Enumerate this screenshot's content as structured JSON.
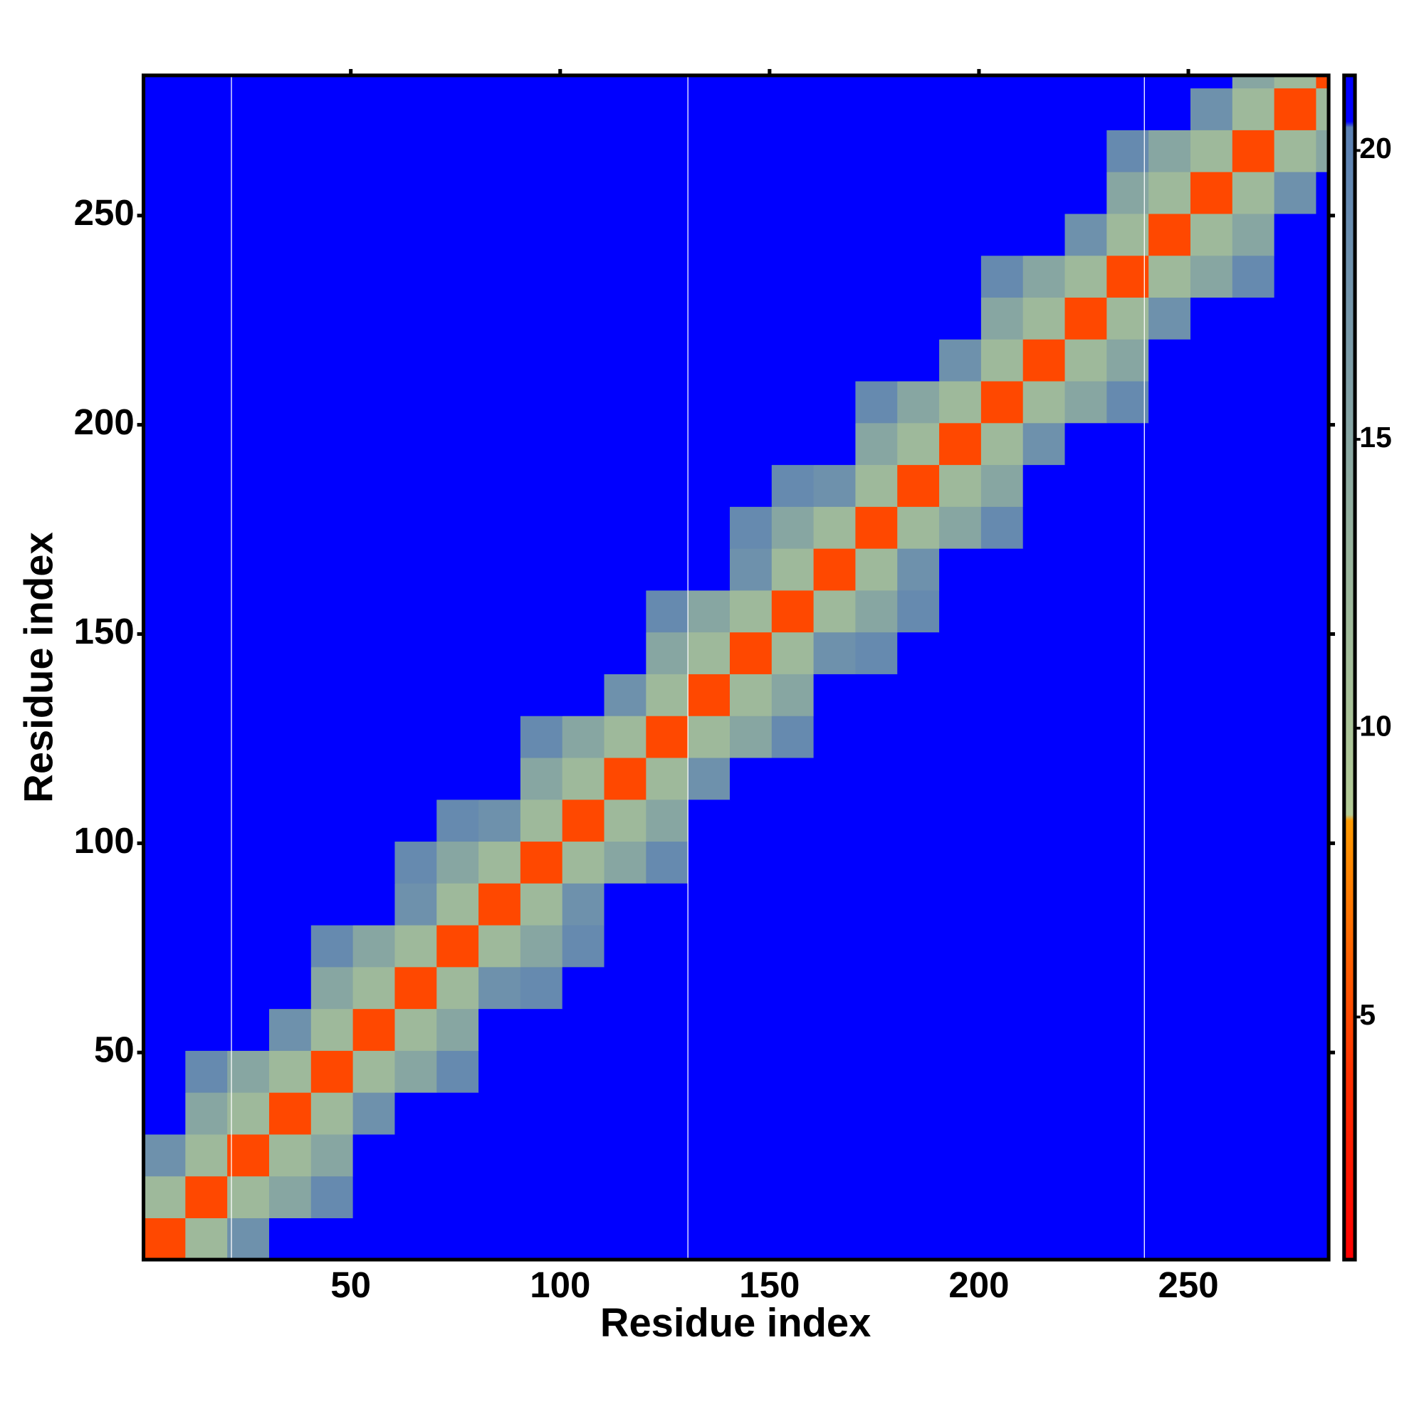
{
  "chart_data": {
    "type": "heatmap",
    "xlabel": "Residue index",
    "ylabel": "Residue index",
    "bins": [
      0.5,
      10.5,
      20.5,
      30.5,
      40.5,
      50.5,
      60.5,
      70.5,
      80.5,
      90.5,
      100.5,
      110.5,
      120.5,
      130.5,
      140.5,
      150.5,
      160.5,
      170.5,
      180.5,
      190.5,
      200.5,
      210.5,
      220.5,
      230.5,
      240.5,
      250.5,
      260.5,
      270.5,
      280.5,
      283.5
    ],
    "z": [
      [
        5,
        12,
        18,
        21,
        21,
        21,
        21,
        21,
        21,
        21,
        21,
        21,
        21,
        21,
        21,
        21,
        21,
        21,
        21,
        21,
        21,
        21,
        21,
        21,
        21,
        21,
        21,
        21,
        21
      ],
      [
        12,
        5,
        12,
        15,
        19,
        21,
        21,
        21,
        21,
        21,
        21,
        21,
        21,
        21,
        21,
        21,
        21,
        21,
        21,
        21,
        21,
        21,
        21,
        21,
        21,
        21,
        21,
        21,
        21
      ],
      [
        18,
        12,
        5,
        12,
        15,
        21,
        21,
        21,
        21,
        21,
        21,
        21,
        21,
        21,
        21,
        21,
        21,
        21,
        21,
        21,
        21,
        21,
        21,
        21,
        21,
        21,
        21,
        21,
        21
      ],
      [
        21,
        15,
        12,
        5,
        12,
        18,
        21,
        21,
        21,
        21,
        21,
        21,
        21,
        21,
        21,
        21,
        21,
        21,
        21,
        21,
        21,
        21,
        21,
        21,
        21,
        21,
        21,
        21,
        21
      ],
      [
        21,
        19,
        15,
        12,
        5,
        12,
        15,
        19,
        21,
        21,
        21,
        21,
        21,
        21,
        21,
        21,
        21,
        21,
        21,
        21,
        21,
        21,
        21,
        21,
        21,
        21,
        21,
        21,
        21
      ],
      [
        21,
        21,
        21,
        18,
        12,
        5,
        12,
        15,
        21,
        21,
        21,
        21,
        21,
        21,
        21,
        21,
        21,
        21,
        21,
        21,
        21,
        21,
        21,
        21,
        21,
        21,
        21,
        21,
        21
      ],
      [
        21,
        21,
        21,
        21,
        15,
        12,
        5,
        12,
        18,
        19,
        21,
        21,
        21,
        21,
        21,
        21,
        21,
        21,
        21,
        21,
        21,
        21,
        21,
        21,
        21,
        21,
        21,
        21,
        21
      ],
      [
        21,
        21,
        21,
        21,
        19,
        15,
        12,
        5,
        12,
        15,
        19,
        21,
        21,
        21,
        21,
        21,
        21,
        21,
        21,
        21,
        21,
        21,
        21,
        21,
        21,
        21,
        21,
        21,
        21
      ],
      [
        21,
        21,
        21,
        21,
        21,
        21,
        18,
        12,
        5,
        12,
        18,
        21,
        21,
        21,
        21,
        21,
        21,
        21,
        21,
        21,
        21,
        21,
        21,
        21,
        21,
        21,
        21,
        21,
        21
      ],
      [
        21,
        21,
        21,
        21,
        21,
        21,
        19,
        15,
        12,
        5,
        12,
        15,
        19,
        21,
        21,
        21,
        21,
        21,
        21,
        21,
        21,
        21,
        21,
        21,
        21,
        21,
        21,
        21,
        21
      ],
      [
        21,
        21,
        21,
        21,
        21,
        21,
        21,
        19,
        18,
        12,
        5,
        12,
        15,
        21,
        21,
        21,
        21,
        21,
        21,
        21,
        21,
        21,
        21,
        21,
        21,
        21,
        21,
        21,
        21
      ],
      [
        21,
        21,
        21,
        21,
        21,
        21,
        21,
        21,
        21,
        15,
        12,
        5,
        12,
        18,
        21,
        21,
        21,
        21,
        21,
        21,
        21,
        21,
        21,
        21,
        21,
        21,
        21,
        21,
        21
      ],
      [
        21,
        21,
        21,
        21,
        21,
        21,
        21,
        21,
        21,
        19,
        15,
        12,
        5,
        12,
        15,
        19,
        21,
        21,
        21,
        21,
        21,
        21,
        21,
        21,
        21,
        21,
        21,
        21,
        21
      ],
      [
        21,
        21,
        21,
        21,
        21,
        21,
        21,
        21,
        21,
        21,
        21,
        18,
        12,
        5,
        12,
        15,
        21,
        21,
        21,
        21,
        21,
        21,
        21,
        21,
        21,
        21,
        21,
        21,
        21
      ],
      [
        21,
        21,
        21,
        21,
        21,
        21,
        21,
        21,
        21,
        21,
        21,
        21,
        15,
        12,
        5,
        12,
        18,
        19,
        21,
        21,
        21,
        21,
        21,
        21,
        21,
        21,
        21,
        21,
        21
      ],
      [
        21,
        21,
        21,
        21,
        21,
        21,
        21,
        21,
        21,
        21,
        21,
        21,
        19,
        15,
        12,
        5,
        12,
        15,
        19,
        21,
        21,
        21,
        21,
        21,
        21,
        21,
        21,
        21,
        21
      ],
      [
        21,
        21,
        21,
        21,
        21,
        21,
        21,
        21,
        21,
        21,
        21,
        21,
        21,
        21,
        18,
        12,
        5,
        12,
        18,
        21,
        21,
        21,
        21,
        21,
        21,
        21,
        21,
        21,
        21
      ],
      [
        21,
        21,
        21,
        21,
        21,
        21,
        21,
        21,
        21,
        21,
        21,
        21,
        21,
        21,
        19,
        15,
        12,
        5,
        12,
        15,
        19,
        21,
        21,
        21,
        21,
        21,
        21,
        21,
        21
      ],
      [
        21,
        21,
        21,
        21,
        21,
        21,
        21,
        21,
        21,
        21,
        21,
        21,
        21,
        21,
        21,
        19,
        18,
        12,
        5,
        12,
        15,
        21,
        21,
        21,
        21,
        21,
        21,
        21,
        21
      ],
      [
        21,
        21,
        21,
        21,
        21,
        21,
        21,
        21,
        21,
        21,
        21,
        21,
        21,
        21,
        21,
        21,
        21,
        15,
        12,
        5,
        12,
        18,
        21,
        21,
        21,
        21,
        21,
        21,
        21
      ],
      [
        21,
        21,
        21,
        21,
        21,
        21,
        21,
        21,
        21,
        21,
        21,
        21,
        21,
        21,
        21,
        21,
        21,
        19,
        15,
        12,
        5,
        12,
        15,
        19,
        21,
        21,
        21,
        21,
        21
      ],
      [
        21,
        21,
        21,
        21,
        21,
        21,
        21,
        21,
        21,
        21,
        21,
        21,
        21,
        21,
        21,
        21,
        21,
        21,
        21,
        18,
        12,
        5,
        12,
        15,
        21,
        21,
        21,
        21,
        21
      ],
      [
        21,
        21,
        21,
        21,
        21,
        21,
        21,
        21,
        21,
        21,
        21,
        21,
        21,
        21,
        21,
        21,
        21,
        21,
        21,
        21,
        15,
        12,
        5,
        12,
        18,
        21,
        21,
        21,
        21
      ],
      [
        21,
        21,
        21,
        21,
        21,
        21,
        21,
        21,
        21,
        21,
        21,
        21,
        21,
        21,
        21,
        21,
        21,
        21,
        21,
        21,
        19,
        15,
        12,
        5,
        12,
        15,
        19,
        21,
        21
      ],
      [
        21,
        21,
        21,
        21,
        21,
        21,
        21,
        21,
        21,
        21,
        21,
        21,
        21,
        21,
        21,
        21,
        21,
        21,
        21,
        21,
        21,
        21,
        18,
        12,
        5,
        12,
        15,
        21,
        21
      ],
      [
        21,
        21,
        21,
        21,
        21,
        21,
        21,
        21,
        21,
        21,
        21,
        21,
        21,
        21,
        21,
        21,
        21,
        21,
        21,
        21,
        21,
        21,
        21,
        15,
        12,
        5,
        12,
        18,
        21
      ],
      [
        21,
        21,
        21,
        21,
        21,
        21,
        21,
        21,
        21,
        21,
        21,
        21,
        21,
        21,
        21,
        21,
        21,
        21,
        21,
        21,
        21,
        21,
        21,
        19,
        15,
        12,
        5,
        12,
        15
      ],
      [
        21,
        21,
        21,
        21,
        21,
        21,
        21,
        21,
        21,
        21,
        21,
        21,
        21,
        21,
        21,
        21,
        21,
        21,
        21,
        21,
        21,
        21,
        21,
        21,
        21,
        18,
        12,
        5,
        12
      ],
      [
        21,
        21,
        21,
        21,
        21,
        21,
        21,
        21,
        21,
        21,
        21,
        21,
        21,
        21,
        21,
        21,
        21,
        21,
        21,
        21,
        21,
        21,
        21,
        21,
        21,
        21,
        15,
        12,
        5
      ]
    ],
    "xlim": [
      0.5,
      283.5
    ],
    "ylim": [
      0.5,
      283.5
    ],
    "xticks": [
      50,
      100,
      150,
      200,
      250
    ],
    "yticks": [
      50,
      100,
      150,
      200,
      250
    ],
    "clim": [
      0.8,
      21.3
    ],
    "cticks": [
      5,
      10,
      15,
      20
    ],
    "colorscale": [
      [
        0.8,
        "#ff0000"
      ],
      [
        4,
        "#ff3000"
      ],
      [
        8.4,
        "#ff9a00"
      ],
      [
        8.5,
        "#b4cc96"
      ],
      [
        13,
        "#98b49c"
      ],
      [
        20.4,
        "#5a80b4"
      ],
      [
        20.5,
        "#0000ff"
      ],
      [
        21.3,
        "#0000ff"
      ]
    ],
    "vlines": [
      21.5,
      130.5,
      239.5
    ],
    "vline_color": "#ffffff"
  }
}
